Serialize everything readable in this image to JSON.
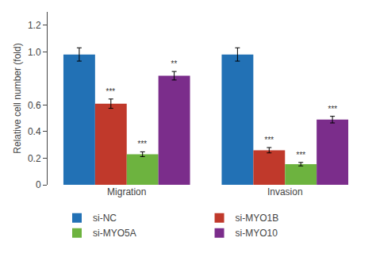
{
  "chart_data": {
    "type": "bar",
    "categories": [
      "Migration",
      "Invasion"
    ],
    "series": [
      {
        "name": "si-NC",
        "color": "#2271b5",
        "values": [
          0.98,
          0.98
        ],
        "errors": [
          0.05,
          0.05
        ],
        "annotations": [
          null,
          null
        ]
      },
      {
        "name": "si-MYO1B",
        "color": "#c0392b",
        "values": [
          0.61,
          0.26
        ],
        "errors": [
          0.035,
          0.02
        ],
        "annotations": [
          "***",
          "***"
        ]
      },
      {
        "name": "si-MYO5A",
        "color": "#6db33f",
        "values": [
          0.23,
          0.155
        ],
        "errors": [
          0.018,
          0.013
        ],
        "annotations": [
          "***",
          "***"
        ]
      },
      {
        "name": "si-MYO10",
        "color": "#7b2d8b",
        "values": [
          0.82,
          0.49
        ],
        "errors": [
          0.032,
          0.025
        ],
        "annotations": [
          "**",
          "***"
        ]
      }
    ],
    "ylabel": "Relative cell number (fold)",
    "ylim": [
      0,
      1.3
    ],
    "yticks": [
      0,
      0.2,
      0.4,
      0.6,
      {
        "value": 1,
        "label": "1.0"
      },
      1.2
    ],
    "grid": false,
    "legend": "bottom"
  }
}
